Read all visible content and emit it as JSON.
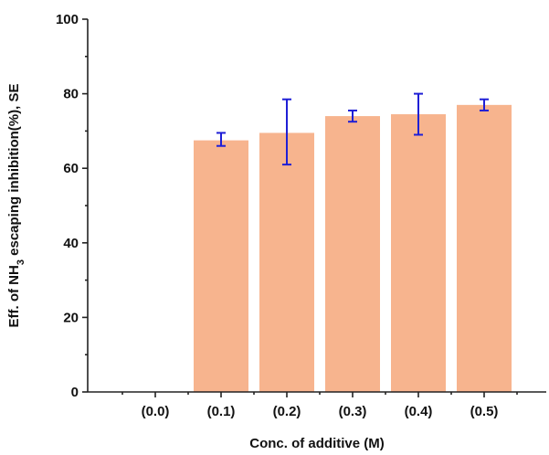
{
  "chart_data": {
    "type": "bar",
    "xlabel": "Conc. of additive (M)",
    "ylabel_parts": [
      "Eff. of NH",
      "3",
      " escaping inhibition(%), SE"
    ],
    "categories": [
      "(0.0)",
      "(0.1)",
      "(0.2)",
      "(0.3)",
      "(0.4)",
      "(0.5)"
    ],
    "values": [
      0,
      67.5,
      69.5,
      74,
      74.5,
      77
    ],
    "error_low": [
      0,
      66,
      61,
      72.5,
      69,
      75.5
    ],
    "error_high": [
      0,
      69.5,
      78.5,
      75.5,
      80,
      78.5
    ],
    "ylim": [
      0,
      100
    ],
    "yticks": [
      0,
      20,
      40,
      60,
      80,
      100
    ],
    "grid": false,
    "bar_color": "#f7b48e",
    "error_color": "#1f1fd6"
  }
}
